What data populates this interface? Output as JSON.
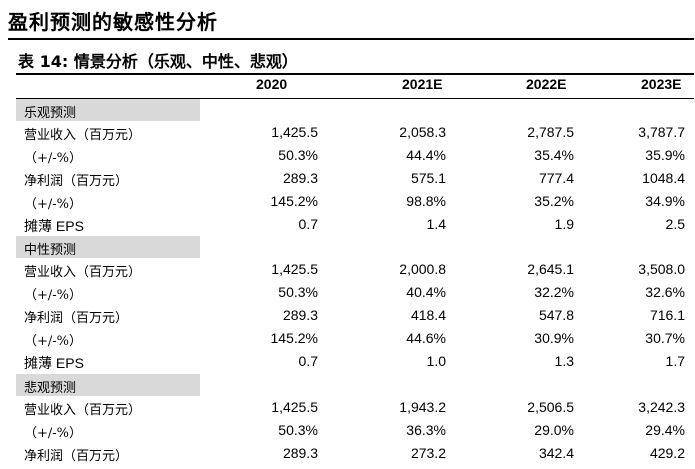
{
  "page_title": "盈利预测的敏感性分析",
  "table_title": {
    "prefix": "表",
    "number": "14:",
    "text": "情景分析（乐观、中性、悲观）"
  },
  "columns": [
    "2020",
    "2021E",
    "2022E",
    "2023E"
  ],
  "sections": [
    {
      "label": "乐观预测",
      "rows": [
        {
          "label": "营业收入（百万元）",
          "values": [
            "1,425.5",
            "2,058.3",
            "2,787.5",
            "3,787.7"
          ]
        },
        {
          "label": "（+/-%）",
          "values": [
            "50.3%",
            "44.4%",
            "35.4%",
            "35.9%"
          ]
        },
        {
          "label": "净利润（百万元）",
          "values": [
            "289.3",
            "575.1",
            "777.4",
            "1048.4"
          ]
        },
        {
          "label": "（+/-%）",
          "values": [
            "145.2%",
            "98.8%",
            "35.2%",
            "34.9%"
          ]
        },
        {
          "label": "摊薄 EPS",
          "values": [
            "0.7",
            "1.4",
            "1.9",
            "2.5"
          ]
        }
      ]
    },
    {
      "label": "中性预测",
      "rows": [
        {
          "label": "营业收入（百万元）",
          "values": [
            "1,425.5",
            "2,000.8",
            "2,645.1",
            "3,508.0"
          ]
        },
        {
          "label": "（+/-%）",
          "values": [
            "50.3%",
            "40.4%",
            "32.2%",
            "32.6%"
          ]
        },
        {
          "label": "净利润（百万元）",
          "values": [
            "289.3",
            "418.4",
            "547.8",
            "716.1"
          ]
        },
        {
          "label": "（+/-%）",
          "values": [
            "145.2%",
            "44.6%",
            "30.9%",
            "30.7%"
          ]
        },
        {
          "label": "摊薄 EPS",
          "values": [
            "0.7",
            "1.0",
            "1.3",
            "1.7"
          ]
        }
      ]
    },
    {
      "label": "悲观预测",
      "rows": [
        {
          "label": "营业收入（百万元）",
          "values": [
            "1,425.5",
            "1,943.2",
            "2,506.5",
            "3,242.3"
          ]
        },
        {
          "label": "（+/-%）",
          "values": [
            "50.3%",
            "36.3%",
            "29.0%",
            "29.4%"
          ]
        },
        {
          "label": "净利润（百万元）",
          "values": [
            "289.3",
            "273.2",
            "342.4",
            "429.2"
          ]
        }
      ]
    }
  ],
  "colors": {
    "section_band": "#d9d9d9",
    "text": "#000000"
  }
}
